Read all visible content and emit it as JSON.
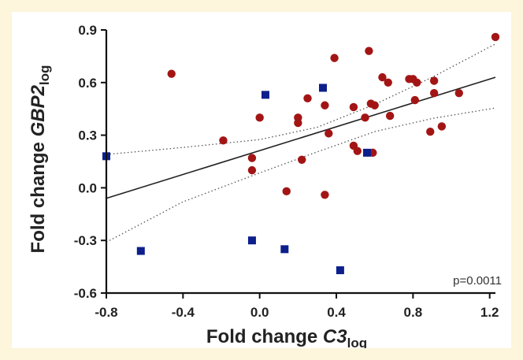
{
  "chart_data": {
    "type": "scatter",
    "title": "",
    "xlabel": {
      "main": "Fold change ",
      "var": "C3",
      "sub": "log"
    },
    "ylabel": {
      "main": "Fold change ",
      "var": "GBP2",
      "sub": "log"
    },
    "xlim": [
      -0.8,
      1.23
    ],
    "ylim": [
      -0.6,
      0.9
    ],
    "xticks": [
      "-0.8",
      "-0.4",
      "0.0",
      "0.4",
      "0.8",
      "1.2"
    ],
    "yticks": [
      "-0.6",
      "-0.3",
      "0.0",
      "0.3",
      "0.6",
      "0.9"
    ],
    "annotation": "p=0.0011",
    "grid": false,
    "colors": {
      "circles": "#a31515",
      "squares": "#0c1f8c",
      "line": "#222222"
    },
    "series": [
      {
        "marker": "circle",
        "points": [
          [
            -0.46,
            0.65
          ],
          [
            -0.19,
            0.27
          ],
          [
            -0.04,
            0.17
          ],
          [
            -0.04,
            0.1
          ],
          [
            0.0,
            0.4
          ],
          [
            0.14,
            -0.02
          ],
          [
            0.2,
            0.4
          ],
          [
            0.2,
            0.37
          ],
          [
            0.22,
            0.16
          ],
          [
            0.25,
            0.51
          ],
          [
            0.34,
            0.47
          ],
          [
            0.34,
            -0.04
          ],
          [
            0.36,
            0.31
          ],
          [
            0.39,
            0.74
          ],
          [
            0.49,
            0.46
          ],
          [
            0.49,
            0.24
          ],
          [
            0.51,
            0.21
          ],
          [
            0.55,
            0.4
          ],
          [
            0.57,
            0.78
          ],
          [
            0.58,
            0.48
          ],
          [
            0.59,
            0.2
          ],
          [
            0.6,
            0.47
          ],
          [
            0.64,
            0.63
          ],
          [
            0.67,
            0.6
          ],
          [
            0.68,
            0.41
          ],
          [
            0.78,
            0.62
          ],
          [
            0.8,
            0.62
          ],
          [
            0.81,
            0.5
          ],
          [
            0.82,
            0.6
          ],
          [
            0.89,
            0.32
          ],
          [
            0.91,
            0.54
          ],
          [
            0.91,
            0.61
          ],
          [
            0.95,
            0.35
          ],
          [
            1.04,
            0.54
          ],
          [
            1.23,
            0.86
          ]
        ]
      },
      {
        "marker": "square",
        "points": [
          [
            -0.8,
            0.18
          ],
          [
            -0.62,
            -0.36
          ],
          [
            -0.04,
            -0.3
          ],
          [
            0.03,
            0.53
          ],
          [
            0.13,
            -0.35
          ],
          [
            0.33,
            0.57
          ],
          [
            0.42,
            -0.47
          ],
          [
            0.56,
            0.2
          ]
        ]
      }
    ],
    "regression": {
      "x": [
        -0.8,
        1.23
      ],
      "y": [
        -0.06,
        0.63
      ]
    },
    "confidence_band": {
      "upper": [
        [
          -0.8,
          0.19
        ],
        [
          -0.4,
          0.23
        ],
        [
          0.0,
          0.275
        ],
        [
          0.3,
          0.345
        ],
        [
          0.6,
          0.475
        ],
        [
          0.9,
          0.63
        ],
        [
          1.23,
          0.82
        ]
      ],
      "lower": [
        [
          -0.8,
          -0.31
        ],
        [
          -0.4,
          -0.08
        ],
        [
          0.0,
          0.085
        ],
        [
          0.3,
          0.205
        ],
        [
          0.6,
          0.32
        ],
        [
          0.9,
          0.395
        ],
        [
          1.23,
          0.455
        ]
      ]
    }
  }
}
